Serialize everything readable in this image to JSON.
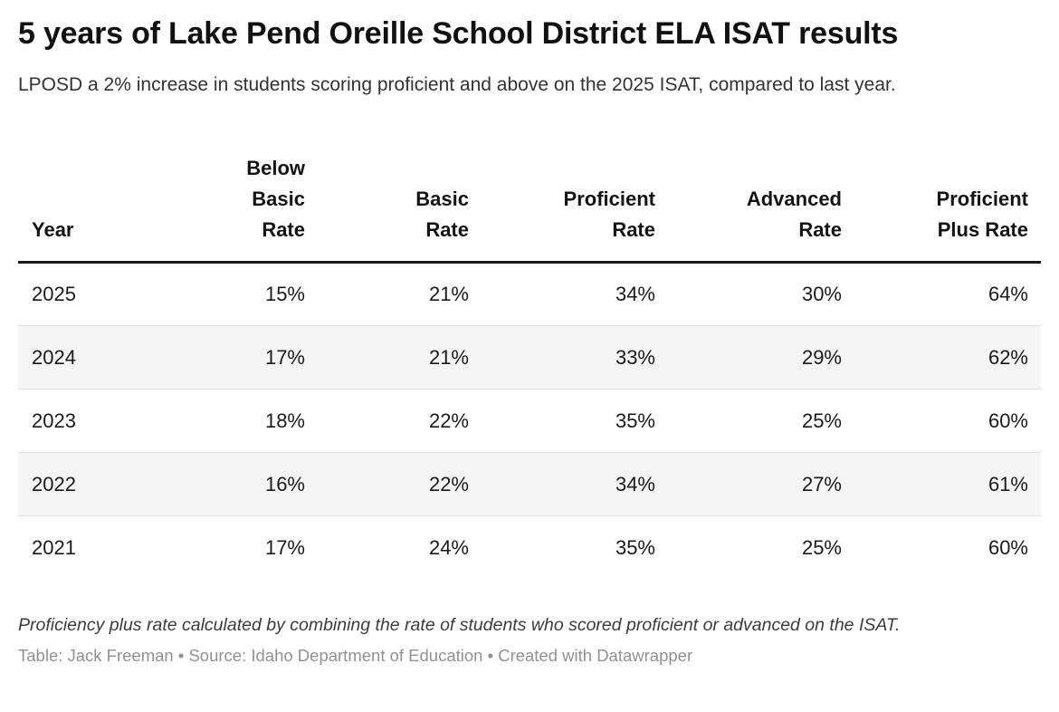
{
  "header": {
    "title": "5 years of Lake Pend Oreille School District ELA ISAT results",
    "description": "LPOSD a 2% increase in students scoring proficient and above on the 2025 ISAT, compared to last year."
  },
  "table": {
    "columns": [
      {
        "label": "Year",
        "wrap": "Year"
      },
      {
        "label": "Below Basic Rate",
        "wrap": "Below\nBasic\nRate"
      },
      {
        "label": "Basic Rate",
        "wrap": "Basic\nRate"
      },
      {
        "label": "Proficient Rate",
        "wrap": "Proficient\nRate"
      },
      {
        "label": "Advanced Rate",
        "wrap": "Advanced\nRate"
      },
      {
        "label": "Proficient Plus Rate",
        "wrap": "Proficient\nPlus Rate"
      }
    ],
    "rows": [
      [
        "2025",
        "15%",
        "21%",
        "34%",
        "30%",
        "64%"
      ],
      [
        "2024",
        "17%",
        "21%",
        "33%",
        "29%",
        "62%"
      ],
      [
        "2023",
        "18%",
        "22%",
        "35%",
        "25%",
        "60%"
      ],
      [
        "2022",
        "16%",
        "22%",
        "34%",
        "27%",
        "61%"
      ],
      [
        "2021",
        "17%",
        "24%",
        "35%",
        "25%",
        "60%"
      ]
    ]
  },
  "footer": {
    "note": "Proficiency plus rate calculated by combining the rate of students who scored proficient or advanced on the ISAT.",
    "byline": "Table: Jack Freeman • Source: Idaho Department of Education • Created with Datawrapper"
  },
  "colors": {
    "stripe": "#f5f5f5",
    "row_divider": "#e0e0e0",
    "header_rule": "#181818",
    "title_text": "#111111",
    "byline_text": "#919191"
  },
  "chart_data": {
    "type": "table",
    "title": "5 years of Lake Pend Oreille School District ELA ISAT results",
    "subtitle": "LPOSD a 2% increase in students scoring proficient and above on the 2025 ISAT, compared to last year.",
    "columns": [
      "Year",
      "Below Basic Rate",
      "Basic Rate",
      "Proficient Rate",
      "Advanced Rate",
      "Proficient Plus Rate"
    ],
    "rows": [
      [
        2025,
        15,
        21,
        34,
        30,
        64
      ],
      [
        2024,
        17,
        21,
        33,
        29,
        62
      ],
      [
        2023,
        18,
        22,
        35,
        25,
        60
      ],
      [
        2022,
        16,
        22,
        34,
        27,
        61
      ],
      [
        2021,
        17,
        24,
        35,
        25,
        60
      ]
    ],
    "units": "percent",
    "note": "Proficiency plus rate calculated by combining the rate of students who scored proficient or advanced on the ISAT.",
    "table_author": "Jack Freeman",
    "source": "Idaho Department of Education",
    "tool": "Datawrapper"
  }
}
